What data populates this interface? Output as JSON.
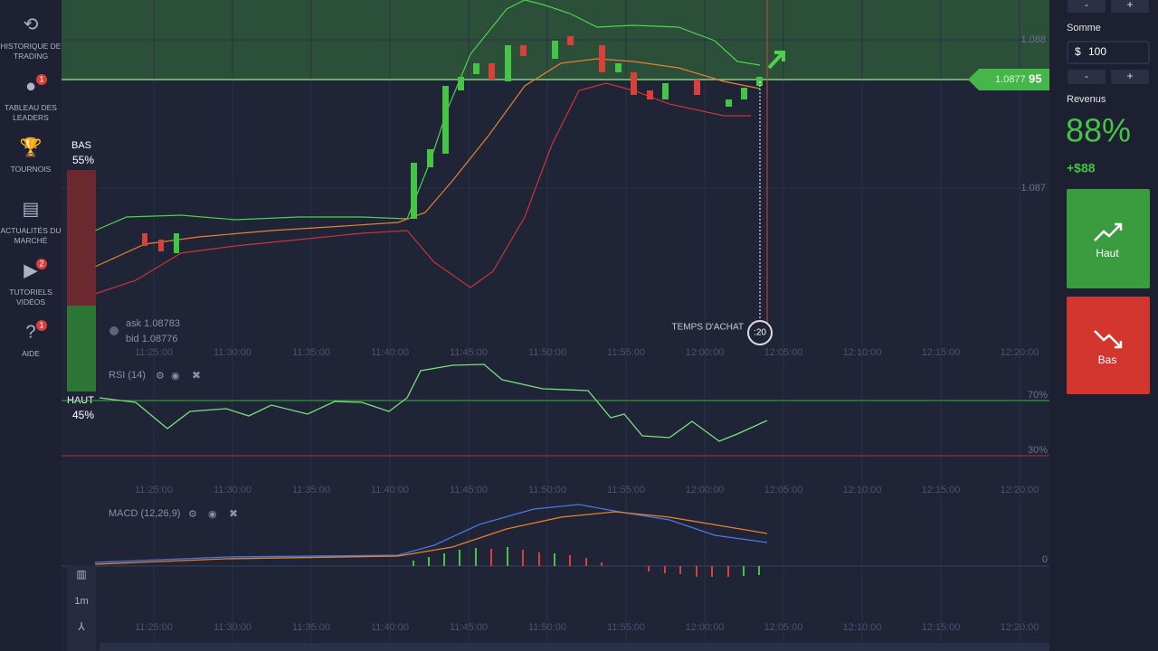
{
  "sidebar": [
    {
      "label": "HISTORIQUE DE TRADING"
    },
    {
      "label": "TABLEAU DES LEADERS",
      "badge": "1"
    },
    {
      "label": "TOURNOIS"
    },
    {
      "label": "ACTUALITÉS DU MARCHÉ"
    },
    {
      "label": "TUTORIELS VIDÉOS",
      "badge": "2"
    },
    {
      "label": "AIDE",
      "badge": "1"
    }
  ],
  "chart": {
    "sentiment": {
      "down_label": "BAS",
      "down_pct": "55%",
      "up_label": "HAUT",
      "up_pct": "45%"
    },
    "price_levels": [
      "1.088",
      "1.087"
    ],
    "current_price": {
      "main": "1.0877",
      "emph": "95"
    },
    "ask": "ask 1.08783",
    "bid": "bid 1.08776",
    "purchase_time_label": "TEMPS D'ACHAT",
    "countdown": ":20",
    "times": [
      "11:25:00",
      "11:30:00",
      "11:35:00",
      "11:40:00",
      "11:45:00",
      "11:50:00",
      "11:55:00",
      "12:00:00",
      "12:05:00",
      "12:10:00",
      "12:15:00",
      "12:20:00"
    ],
    "rsi": {
      "label": "RSI (14)",
      "upper": "70%",
      "lower": "30%"
    },
    "macd": {
      "label": "MACD (12,26,9)",
      "zero": "0"
    },
    "timeframe": "1m"
  },
  "panel": {
    "minus": "-",
    "plus": "+",
    "amount_label": "Somme",
    "currency": "$",
    "amount": "100",
    "revenue_label": "Revenus",
    "revenue_pct": "88%",
    "revenue_amount": "+$88",
    "up_button": "Haut",
    "down_button": "Bas"
  }
}
